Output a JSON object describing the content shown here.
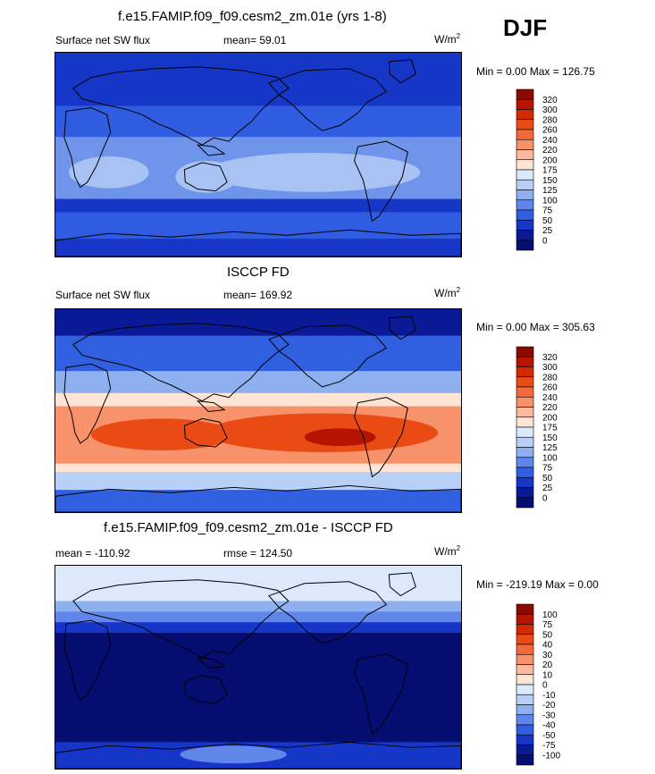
{
  "season": "DJF",
  "panels": [
    {
      "title": "f.e15.FAMIP.f09_f09.cesm2_zm.01e (yrs 1-8)",
      "variable": "Surface net SW flux",
      "mean_text": "mean=  59.01",
      "units": "W/m",
      "units_exp": "2",
      "minmax_text": "Min =   0.00 Max = 126.75",
      "colorbar": {
        "labels": [
          "320",
          "300",
          "280",
          "260",
          "240",
          "220",
          "200",
          "175",
          "150",
          "125",
          "100",
          "75",
          "50",
          "25",
          "0"
        ],
        "colors": [
          "#8b0a00",
          "#b51400",
          "#d42a00",
          "#ea4a14",
          "#f26a3a",
          "#f7926a",
          "#fbb9a0",
          "#fde4d4",
          "#dce9fb",
          "#b8d0f6",
          "#8fb0ee",
          "#5f86e8",
          "#3060e0",
          "#1636c8",
          "#0a1a96",
          "#050d70"
        ]
      },
      "map_palette": [
        "#1636c8",
        "#2f5ce0",
        "#6f95ea",
        "#a8c3f3"
      ]
    },
    {
      "title": "ISCCP FD",
      "variable": "Surface net SW flux",
      "mean_text": "mean= 169.92",
      "units": "W/m",
      "units_exp": "2",
      "minmax_text": "Min =   0.00 Max = 305.63",
      "colorbar": {
        "labels": [
          "320",
          "300",
          "280",
          "260",
          "240",
          "220",
          "200",
          "175",
          "150",
          "125",
          "100",
          "75",
          "50",
          "25",
          "0"
        ],
        "colors": [
          "#8b0a00",
          "#b51400",
          "#d42a00",
          "#ea4a14",
          "#f26a3a",
          "#f7926a",
          "#fbb9a0",
          "#fde4d4",
          "#dce9fb",
          "#b8d0f6",
          "#8fb0ee",
          "#5f86e8",
          "#3060e0",
          "#1636c8",
          "#0a1a96",
          "#050d70"
        ]
      },
      "map_palette": [
        "#0a1a96",
        "#3060e0",
        "#fde4d4",
        "#ea4a14"
      ]
    },
    {
      "title": "f.e15.FAMIP.f09_f09.cesm2_zm.01e - ISCCP FD",
      "variable": "mean = -110.92",
      "mean_text": "rmse = 124.50",
      "units": "W/m",
      "units_exp": "2",
      "minmax_text": "Min = -219.19 Max =   0.00",
      "colorbar": {
        "labels": [
          "100",
          "75",
          "50",
          "40",
          "30",
          "20",
          "10",
          "0",
          "-10",
          "-20",
          "-30",
          "-40",
          "-50",
          "-75",
          "-100"
        ],
        "colors": [
          "#8b0a00",
          "#b51400",
          "#d42a00",
          "#ea4a14",
          "#f26a3a",
          "#f7926a",
          "#fbb9a0",
          "#fde4d4",
          "#dce9fb",
          "#b8d0f6",
          "#8fb0ee",
          "#5f86e8",
          "#3060e0",
          "#1636c8",
          "#0a1a96",
          "#050d70"
        ]
      },
      "map_palette": [
        "#050d70",
        "#1636c8",
        "#5f86e8",
        "#dce9fb"
      ]
    }
  ],
  "chart_data": [
    {
      "type": "heatmap",
      "title": "f.e15.FAMIP.f09_f09.cesm2_zm.01e (yrs 1-8)",
      "variable": "Surface net SW flux",
      "mean": 59.01,
      "min": 0.0,
      "max": 126.75,
      "units": "W/m^2",
      "levels": [
        0,
        25,
        50,
        75,
        100,
        125,
        150,
        175,
        200,
        220,
        240,
        260,
        280,
        300,
        320
      ]
    },
    {
      "type": "heatmap",
      "title": "ISCCP FD",
      "variable": "Surface net SW flux",
      "mean": 169.92,
      "min": 0.0,
      "max": 305.63,
      "units": "W/m^2",
      "levels": [
        0,
        25,
        50,
        75,
        100,
        125,
        150,
        175,
        200,
        220,
        240,
        260,
        280,
        300,
        320
      ]
    },
    {
      "type": "heatmap",
      "title": "f.e15.FAMIP.f09_f09.cesm2_zm.01e - ISCCP FD",
      "mean": -110.92,
      "rmse": 124.5,
      "min": -219.19,
      "max": 0.0,
      "units": "W/m^2",
      "levels": [
        -100,
        -75,
        -50,
        -40,
        -30,
        -20,
        -10,
        0,
        10,
        20,
        30,
        40,
        50,
        75,
        100
      ]
    }
  ]
}
